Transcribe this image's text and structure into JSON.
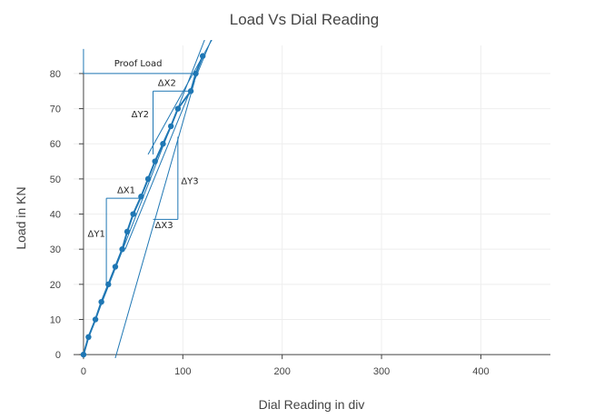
{
  "chart_data": {
    "type": "line",
    "title": "Load Vs Dial Reading",
    "xlabel": "Dial Reading in div",
    "ylabel": "Load in KN",
    "xlim": [
      -10,
      470
    ],
    "ylim": [
      -1,
      88
    ],
    "x_ticks": [
      0,
      100,
      200,
      300,
      400
    ],
    "y_ticks": [
      0,
      10,
      20,
      30,
      40,
      50,
      60,
      70,
      80
    ],
    "grid": true,
    "series": [
      {
        "points": [
          [
            0,
            0
          ],
          [
            5,
            5
          ],
          [
            12,
            10
          ],
          [
            18,
            15
          ],
          [
            25,
            20
          ],
          [
            32,
            25
          ],
          [
            39,
            30
          ],
          [
            44,
            35
          ],
          [
            50,
            40
          ],
          [
            58,
            45
          ],
          [
            65,
            50
          ],
          [
            72,
            55
          ],
          [
            80,
            60
          ],
          [
            88,
            65
          ],
          [
            95,
            70
          ],
          [
            108,
            75
          ],
          [
            113,
            80
          ],
          [
            120,
            85
          ]
        ]
      }
    ],
    "reference_lines": [
      {
        "from": [
          12,
          10
        ],
        "to": [
          128,
          94
        ]
      },
      {
        "from": [
          42,
          30
        ],
        "to": [
          132,
          92
        ]
      },
      {
        "from": [
          65,
          57
        ],
        "to": [
          130,
          90
        ]
      },
      {
        "from": [
          32,
          -1
        ],
        "to": [
          112,
          78
        ]
      }
    ],
    "construction_lines": [
      {
        "from": [
          0,
          80
        ],
        "to": [
          113,
          80
        ]
      },
      {
        "from": [
          0,
          80
        ],
        "to": [
          0,
          87
        ]
      },
      {
        "from": [
          23,
          20
        ],
        "to": [
          23,
          44.5
        ]
      },
      {
        "from": [
          23,
          44.5
        ],
        "to": [
          58,
          44.5
        ]
      },
      {
        "from": [
          70,
          57
        ],
        "to": [
          70,
          75
        ]
      },
      {
        "from": [
          70,
          75
        ],
        "to": [
          108,
          75
        ]
      },
      {
        "from": [
          70,
          38.5
        ],
        "to": [
          95,
          38.5
        ]
      },
      {
        "from": [
          95,
          38.5
        ],
        "to": [
          95,
          62
        ]
      }
    ],
    "annotations": [
      {
        "text": "Proof Load",
        "x": 55,
        "y": 82
      },
      {
        "text": "ΔY1",
        "x": 13,
        "y": 33.5
      },
      {
        "text": "ΔX1",
        "x": 43,
        "y": 46
      },
      {
        "text": "ΔY2",
        "x": 57,
        "y": 67.5
      },
      {
        "text": "ΔX2",
        "x": 84,
        "y": 76.5
      },
      {
        "text": "ΔY3",
        "x": 107,
        "y": 48.5
      },
      {
        "text": "ΔX3",
        "x": 81,
        "y": 36
      }
    ],
    "colors": {
      "series": "#1f77b4",
      "grid": "#eeeeee",
      "axis": "#444444"
    }
  }
}
